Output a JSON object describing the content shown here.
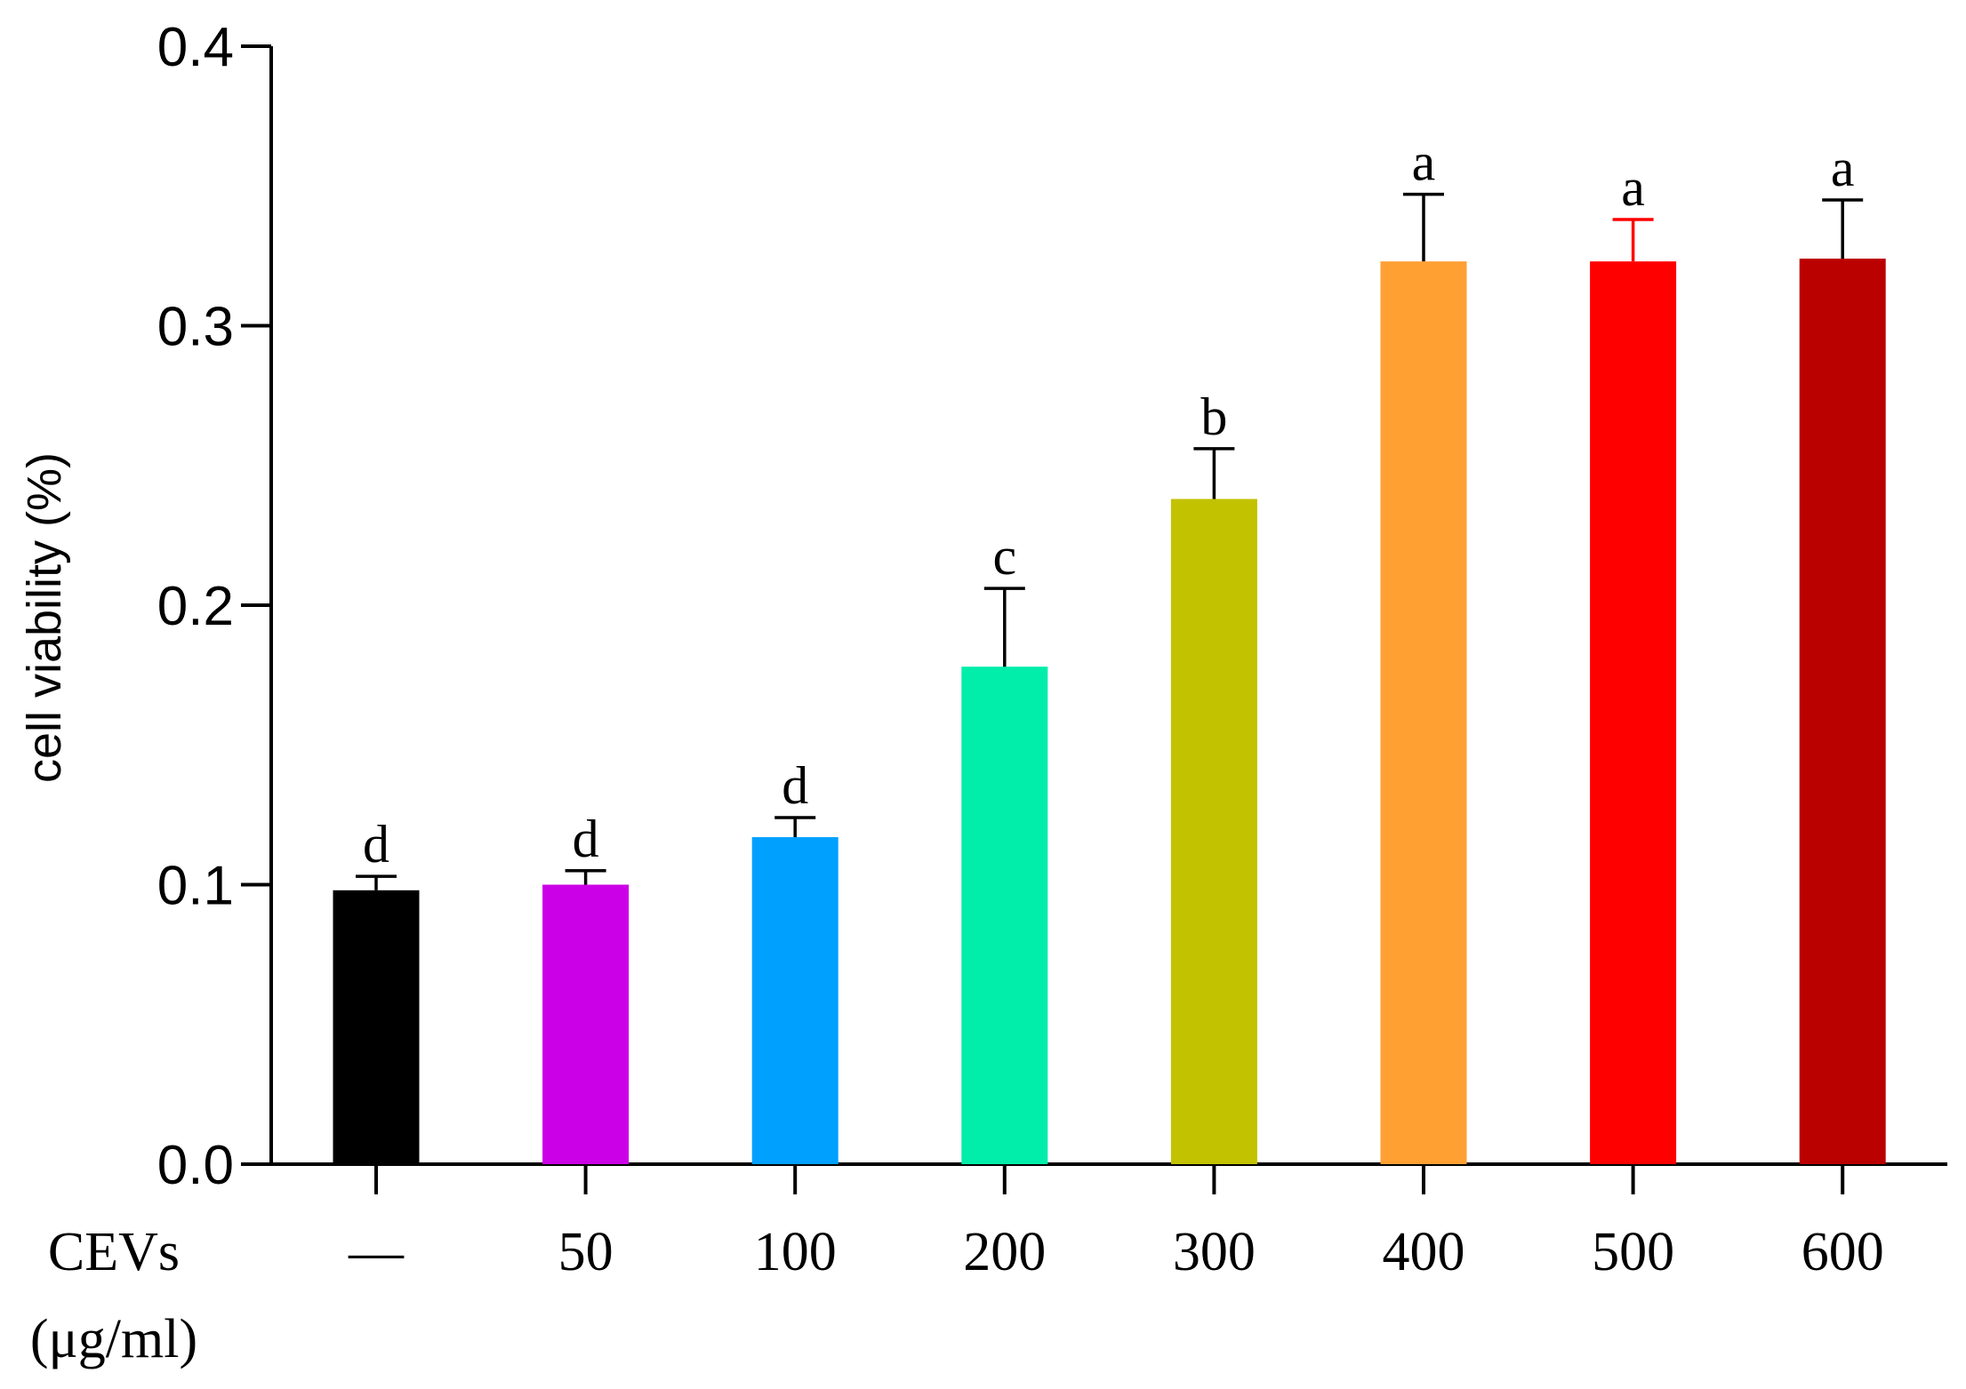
{
  "chart_data": {
    "type": "bar",
    "title": "",
    "xlabel": "",
    "ylabel": "cell viability (%)",
    "x_group_label_line1": "CEVs",
    "x_group_label_line2": "(μg/ml)",
    "categories": [
      "—",
      "50",
      "100",
      "200",
      "300",
      "400",
      "500",
      "600"
    ],
    "values": [
      0.098,
      0.1,
      0.117,
      0.178,
      0.238,
      0.323,
      0.323,
      0.324
    ],
    "error": [
      0.005,
      0.005,
      0.007,
      0.028,
      0.018,
      0.024,
      0.015,
      0.021
    ],
    "significance": [
      "d",
      "d",
      "d",
      "c",
      "b",
      "a",
      "a",
      "a"
    ],
    "colors": [
      "#000000",
      "#CC00E6",
      "#00A0FF",
      "#00EEAA",
      "#C2C200",
      "#FFA033",
      "#FF0000",
      "#BB0000"
    ],
    "error_colors": [
      "#000000",
      "#000000",
      "#000000",
      "#000000",
      "#000000",
      "#000000",
      "#FF0000",
      "#000000"
    ],
    "ylim": [
      0,
      0.4
    ],
    "yticks": [
      "0.0",
      "0.1",
      "0.2",
      "0.3",
      "0.4"
    ],
    "grid": false,
    "legend": "none"
  }
}
